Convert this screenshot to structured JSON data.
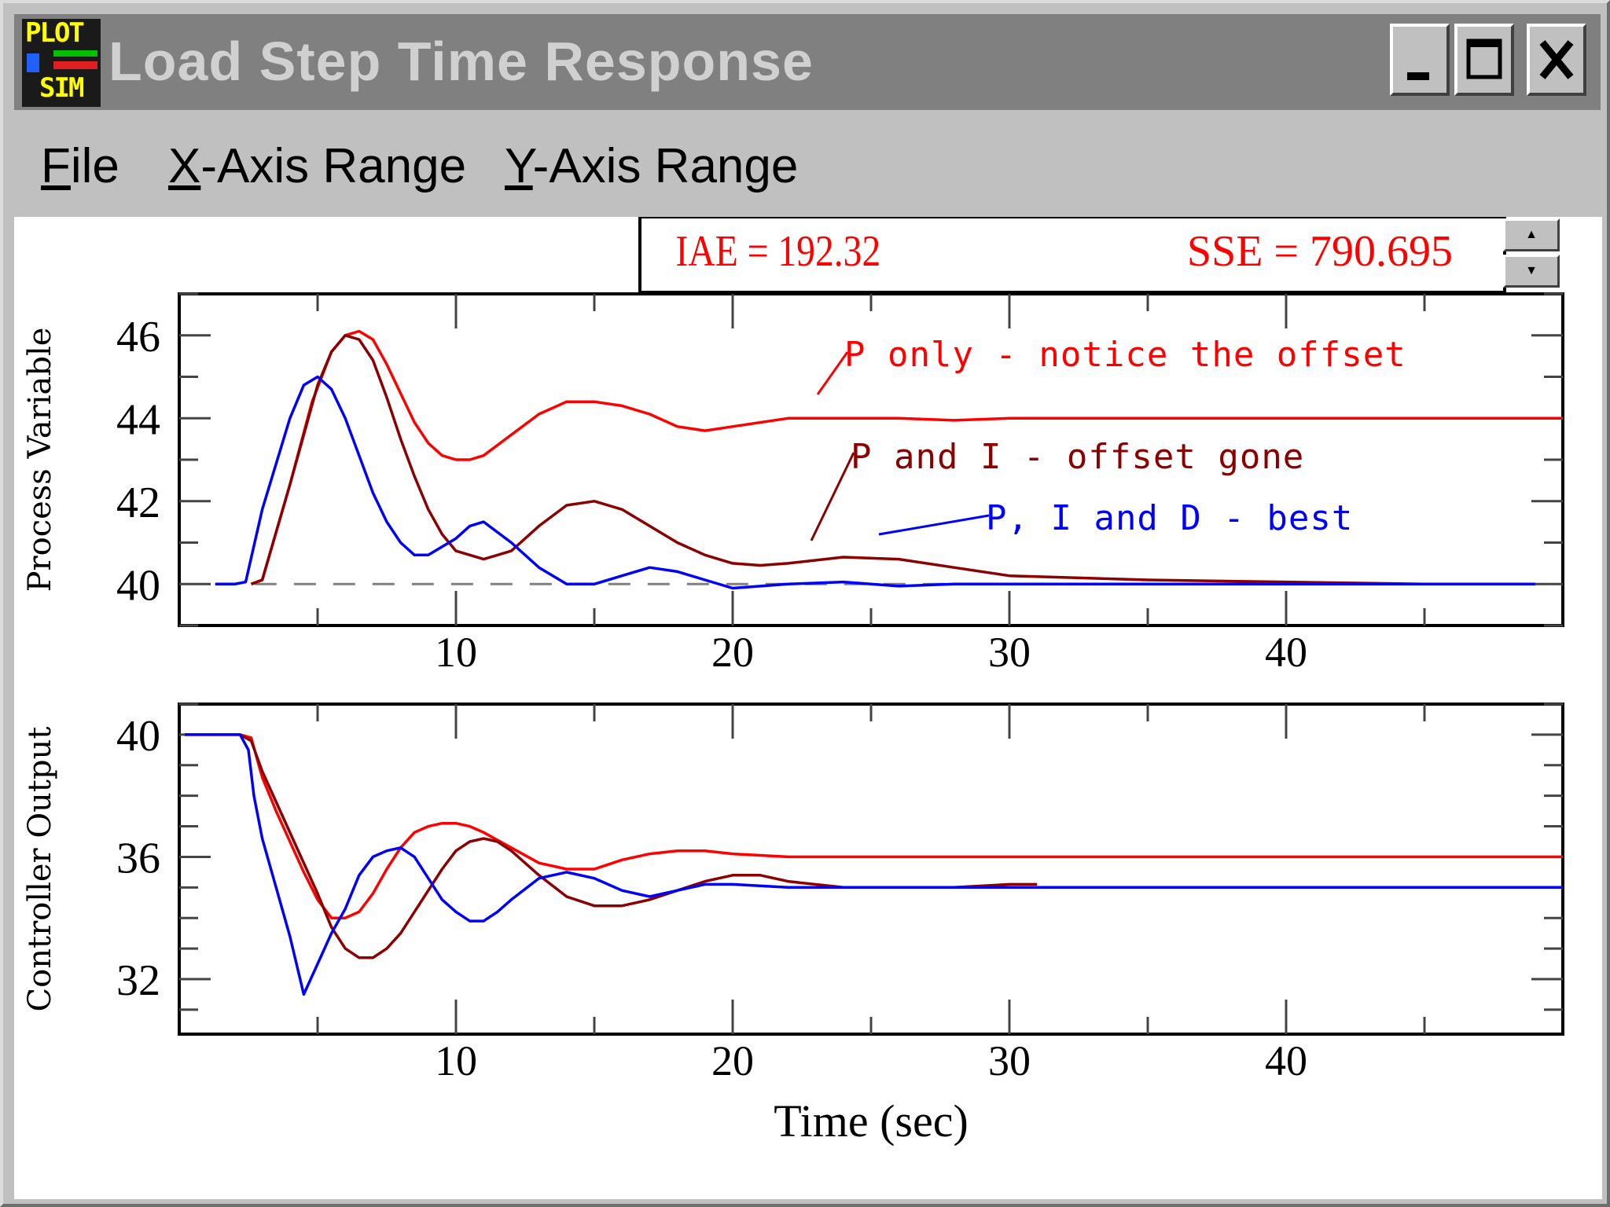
{
  "window": {
    "title": "Load Step Time Response",
    "icon_text_top": "PLOT",
    "icon_text_bottom": "SIM",
    "controls": {
      "minimize": "minimize-icon",
      "maximize": "maximize-icon",
      "close": "close-icon"
    }
  },
  "menu": [
    {
      "label_access": "F",
      "label_rest": "ile"
    },
    {
      "label_access": "X",
      "label_rest": "-Axis Range"
    },
    {
      "label_access": "Y",
      "label_rest": "-Axis Range"
    }
  ],
  "metrics": {
    "iae": "IAE = 192.32",
    "sse": "SSE = 790.695"
  },
  "scroll": {
    "up": "▲",
    "down": "▼"
  },
  "colors": {
    "p_only": "#ff0000",
    "p_i": "#8b0000",
    "pid": "#0000ff",
    "setpoint": "#808080"
  },
  "chart_data": [
    {
      "type": "line",
      "ylabel": "Process Variable",
      "xlabel": "",
      "xlim": [
        0,
        50
      ],
      "ylim": [
        39,
        47
      ],
      "xticks": [
        10,
        20,
        30,
        40
      ],
      "yticks": [
        40,
        42,
        44,
        46
      ],
      "annotations": [
        "P only - notice the offset",
        "P and I - offset gone",
        "P, I and D - best"
      ],
      "series": [
        {
          "key": "setpoint",
          "style": "dashed",
          "x": [
            1.3,
            49
          ],
          "y": [
            40,
            40
          ]
        },
        {
          "key": "p_only",
          "x": [
            2.6,
            3,
            4,
            4.8,
            5.5,
            6,
            6.5,
            7,
            7.5,
            8,
            8.5,
            9,
            9.5,
            10,
            10.5,
            11,
            12,
            13,
            14,
            15,
            16,
            17,
            18,
            19,
            20,
            22,
            24,
            26,
            28,
            30,
            35,
            40,
            45,
            50
          ],
          "y": [
            40,
            40.1,
            42.4,
            44.4,
            45.6,
            46,
            46.1,
            45.9,
            45.3,
            44.6,
            43.9,
            43.4,
            43.1,
            43,
            43,
            43.1,
            43.6,
            44.1,
            44.4,
            44.4,
            44.3,
            44.1,
            43.8,
            43.7,
            43.8,
            44,
            44,
            44,
            43.95,
            44,
            44,
            44,
            44,
            44
          ]
        },
        {
          "key": "p_i",
          "x": [
            2.6,
            3,
            4,
            5,
            5.5,
            6,
            6.5,
            7,
            7.5,
            8,
            8.5,
            9,
            9.5,
            10,
            11,
            12,
            13,
            14,
            15,
            16,
            17,
            18,
            19,
            20,
            21,
            22,
            24,
            26,
            28,
            30,
            35,
            40,
            45
          ],
          "y": [
            40,
            40.1,
            42.4,
            44.8,
            45.6,
            46,
            45.9,
            45.4,
            44.5,
            43.5,
            42.6,
            41.8,
            41.2,
            40.8,
            40.6,
            40.8,
            41.4,
            41.9,
            42,
            41.8,
            41.4,
            41,
            40.7,
            40.5,
            40.45,
            40.5,
            40.65,
            40.6,
            40.4,
            40.2,
            40.1,
            40.05,
            40
          ]
        },
        {
          "key": "pid",
          "x": [
            1.3,
            2,
            2.4,
            3,
            4,
            4.5,
            5,
            5.5,
            6,
            6.5,
            7,
            7.5,
            8,
            8.5,
            9,
            10,
            10.5,
            11,
            12,
            13,
            14,
            15,
            16,
            17,
            18,
            19,
            20,
            22,
            24,
            26,
            28,
            30,
            35,
            40,
            45,
            49
          ],
          "y": [
            40,
            40,
            40.05,
            41.8,
            44,
            44.8,
            45,
            44.7,
            44,
            43.1,
            42.2,
            41.5,
            41,
            40.7,
            40.7,
            41.1,
            41.4,
            41.5,
            41,
            40.4,
            40,
            40,
            40.2,
            40.4,
            40.3,
            40.1,
            39.9,
            40,
            40.05,
            39.95,
            40,
            40,
            40,
            40,
            40,
            40
          ]
        }
      ]
    },
    {
      "type": "line",
      "ylabel": "Controller Output",
      "xlabel": "Time (sec)",
      "xlim": [
        0,
        50
      ],
      "ylim": [
        30.2,
        41
      ],
      "xticks": [
        10,
        20,
        30,
        40
      ],
      "yticks": [
        32,
        36,
        40
      ],
      "series": [
        {
          "key": "p_only",
          "x": [
            0.2,
            2.2,
            2.6,
            3,
            3.5,
            4,
            4.5,
            5,
            5.5,
            6,
            6.5,
            7,
            7.5,
            8,
            8.5,
            9,
            9.5,
            10,
            10.5,
            11,
            12,
            13,
            14,
            15,
            16,
            17,
            18,
            19,
            20,
            22,
            24,
            26,
            30,
            40,
            50
          ],
          "y": [
            40,
            40,
            39.9,
            38.6,
            37.5,
            36.5,
            35.5,
            34.6,
            34,
            34,
            34.2,
            34.8,
            35.6,
            36.3,
            36.8,
            37,
            37.1,
            37.1,
            37,
            36.8,
            36.3,
            35.8,
            35.6,
            35.6,
            35.9,
            36.1,
            36.2,
            36.2,
            36.1,
            36,
            36,
            36,
            36,
            36,
            36
          ]
        },
        {
          "key": "p_i",
          "x": [
            2.2,
            2.6,
            3,
            3.5,
            4,
            4.5,
            5,
            5.5,
            6,
            6.5,
            7,
            7.5,
            8,
            8.5,
            9,
            9.5,
            10,
            10.5,
            11,
            11.5,
            12,
            13,
            14,
            15,
            16,
            17,
            18,
            19,
            20,
            21,
            22,
            24,
            26,
            28,
            30,
            31
          ],
          "y": [
            40,
            39.8,
            38.8,
            37.8,
            36.8,
            35.8,
            34.8,
            33.7,
            33,
            32.7,
            32.7,
            33,
            33.5,
            34.2,
            34.9,
            35.6,
            36.2,
            36.5,
            36.6,
            36.5,
            36.2,
            35.4,
            34.7,
            34.4,
            34.4,
            34.6,
            34.9,
            35.2,
            35.4,
            35.4,
            35.2,
            35,
            35,
            35,
            35.1,
            35.1
          ]
        },
        {
          "key": "pid",
          "x": [
            0.2,
            2.2,
            2.5,
            2.7,
            3,
            3.5,
            4,
            4.5,
            5,
            5.5,
            6,
            6.5,
            7,
            7.5,
            8,
            8.5,
            9,
            9.5,
            10,
            10.5,
            11,
            11.5,
            12,
            13,
            14,
            15,
            16,
            17,
            18,
            19,
            20,
            22,
            24,
            26,
            30,
            40,
            50
          ],
          "y": [
            40,
            40,
            39.5,
            38,
            36.6,
            35,
            33.4,
            31.5,
            32.5,
            33.5,
            34.3,
            35.4,
            36,
            36.2,
            36.3,
            36,
            35.3,
            34.6,
            34.2,
            33.9,
            33.9,
            34.2,
            34.6,
            35.3,
            35.5,
            35.3,
            34.9,
            34.7,
            34.9,
            35.1,
            35.1,
            35,
            35,
            35,
            35,
            35,
            35
          ]
        }
      ]
    }
  ],
  "texts": {
    "annotation_p_only": "P only - notice the offset",
    "annotation_p_i": "P and I - offset gone",
    "annotation_pid": "P, I and D - best"
  }
}
